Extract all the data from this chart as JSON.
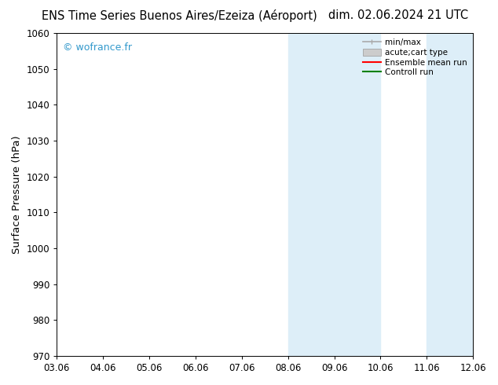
{
  "title_left": "ENS Time Series Buenos Aires/Ezeiza (Aéroport)",
  "title_right": "dim. 02.06.2024 21 UTC",
  "ylabel": "Surface Pressure (hPa)",
  "watermark": "© wofrance.fr",
  "ylim": [
    970,
    1060
  ],
  "yticks": [
    970,
    980,
    990,
    1000,
    1010,
    1020,
    1030,
    1040,
    1050,
    1060
  ],
  "xtick_labels": [
    "03.06",
    "04.06",
    "05.06",
    "06.06",
    "07.06",
    "08.06",
    "09.06",
    "10.06",
    "11.06",
    "12.06"
  ],
  "shaded_regions": [
    {
      "xmin": 5,
      "xmax": 7
    },
    {
      "xmin": 8,
      "xmax": 9
    }
  ],
  "shaded_color": "#ddeef8",
  "background_color": "#ffffff",
  "legend_items": [
    {
      "label": "min/max",
      "color": "#aaaaaa",
      "lw": 1.2
    },
    {
      "label": "acute;cart type",
      "color": "#cccccc",
      "lw": 8
    },
    {
      "label": "Ensemble mean run",
      "color": "#ff0000",
      "lw": 1.5
    },
    {
      "label": "Controll run",
      "color": "#008000",
      "lw": 1.5
    }
  ],
  "title_fontsize": 10.5,
  "tick_fontsize": 8.5,
  "ylabel_fontsize": 9.5,
  "watermark_color": "#3399cc",
  "watermark_fontsize": 9
}
